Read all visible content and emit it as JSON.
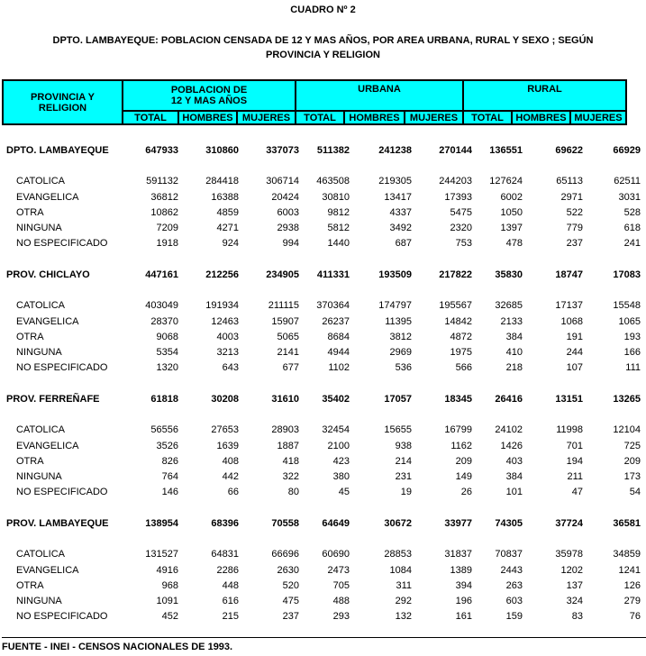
{
  "title": "CUADRO Nº  2",
  "subtitle_line1": "DPTO.  LAMBAYEQUE:  POBLACION CENSADA DE 12 Y MAS AÑOS, POR AREA  URBANA, RURAL Y SEXO ; SEGÚN",
  "subtitle_line2": "PROVINCIA Y RELIGION",
  "header": {
    "col1_line1": "PROVINCIA Y",
    "col1_line2": "RELIGION",
    "group1_line1": "POBLACION DE",
    "group1_line2": "12 Y MAS AÑOS",
    "group2": "URBANA",
    "group3": "RURAL",
    "sub": [
      "TOTAL",
      "HOMBRES",
      "MUJERES",
      "TOTAL",
      "HOMBRES",
      "MUJERES",
      "TOTAL",
      "HOMBRES",
      "MUJERES"
    ]
  },
  "header_color": "#00ffff",
  "sections": [
    {
      "name": "DPTO. LAMBAYEQUE",
      "values": [
        "647933",
        "310860",
        "337073",
        "511382",
        "241238",
        "270144",
        "136551",
        "69622",
        "66929"
      ],
      "rows": [
        {
          "label": "CATOLICA",
          "values": [
            "591132",
            "284418",
            "306714",
            "463508",
            "219305",
            "244203",
            "127624",
            "65113",
            "62511"
          ]
        },
        {
          "label": "EVANGELICA",
          "values": [
            "36812",
            "16388",
            "20424",
            "30810",
            "13417",
            "17393",
            "6002",
            "2971",
            "3031"
          ]
        },
        {
          "label": "OTRA",
          "values": [
            "10862",
            "4859",
            "6003",
            "9812",
            "4337",
            "5475",
            "1050",
            "522",
            "528"
          ]
        },
        {
          "label": "NINGUNA",
          "values": [
            "7209",
            "4271",
            "2938",
            "5812",
            "3492",
            "2320",
            "1397",
            "779",
            "618"
          ]
        },
        {
          "label": "NO ESPECIFICADO",
          "values": [
            "1918",
            "924",
            "994",
            "1440",
            "687",
            "753",
            "478",
            "237",
            "241"
          ]
        }
      ]
    },
    {
      "name": "PROV. CHICLAYO",
      "values": [
        "447161",
        "212256",
        "234905",
        "411331",
        "193509",
        "217822",
        "35830",
        "18747",
        "17083"
      ],
      "rows": [
        {
          "label": "CATOLICA",
          "values": [
            "403049",
            "191934",
            "211115",
            "370364",
            "174797",
            "195567",
            "32685",
            "17137",
            "15548"
          ]
        },
        {
          "label": "EVANGELICA",
          "values": [
            "28370",
            "12463",
            "15907",
            "26237",
            "11395",
            "14842",
            "2133",
            "1068",
            "1065"
          ]
        },
        {
          "label": "OTRA",
          "values": [
            "9068",
            "4003",
            "5065",
            "8684",
            "3812",
            "4872",
            "384",
            "191",
            "193"
          ]
        },
        {
          "label": "NINGUNA",
          "values": [
            "5354",
            "3213",
            "2141",
            "4944",
            "2969",
            "1975",
            "410",
            "244",
            "166"
          ]
        },
        {
          "label": "NO ESPECIFICADO",
          "values": [
            "1320",
            "643",
            "677",
            "1102",
            "536",
            "566",
            "218",
            "107",
            "111"
          ]
        }
      ]
    },
    {
      "name": "PROV. FERREÑAFE",
      "values": [
        "61818",
        "30208",
        "31610",
        "35402",
        "17057",
        "18345",
        "26416",
        "13151",
        "13265"
      ],
      "rows": [
        {
          "label": "CATOLICA",
          "values": [
            "56556",
            "27653",
            "28903",
            "32454",
            "15655",
            "16799",
            "24102",
            "11998",
            "12104"
          ]
        },
        {
          "label": "EVANGELICA",
          "values": [
            "3526",
            "1639",
            "1887",
            "2100",
            "938",
            "1162",
            "1426",
            "701",
            "725"
          ]
        },
        {
          "label": "OTRA",
          "values": [
            "826",
            "408",
            "418",
            "423",
            "214",
            "209",
            "403",
            "194",
            "209"
          ]
        },
        {
          "label": "NINGUNA",
          "values": [
            "764",
            "442",
            "322",
            "380",
            "231",
            "149",
            "384",
            "211",
            "173"
          ]
        },
        {
          "label": "NO ESPECIFICADO",
          "values": [
            "146",
            "66",
            "80",
            "45",
            "19",
            "26",
            "101",
            "47",
            "54"
          ]
        }
      ]
    },
    {
      "name": "PROV. LAMBAYEQUE",
      "values": [
        "138954",
        "68396",
        "70558",
        "64649",
        "30672",
        "33977",
        "74305",
        "37724",
        "36581"
      ],
      "rows": [
        {
          "label": "CATOLICA",
          "values": [
            "131527",
            "64831",
            "66696",
            "60690",
            "28853",
            "31837",
            "70837",
            "35978",
            "34859"
          ]
        },
        {
          "label": "EVANGELICA",
          "values": [
            "4916",
            "2286",
            "2630",
            "2473",
            "1084",
            "1389",
            "2443",
            "1202",
            "1241"
          ]
        },
        {
          "label": "OTRA",
          "values": [
            "968",
            "448",
            "520",
            "705",
            "311",
            "394",
            "263",
            "137",
            "126"
          ]
        },
        {
          "label": "NINGUNA",
          "values": [
            "1091",
            "616",
            "475",
            "488",
            "292",
            "196",
            "603",
            "324",
            "279"
          ]
        },
        {
          "label": "NO ESPECIFICADO",
          "values": [
            "452",
            "215",
            "237",
            "293",
            "132",
            "161",
            "159",
            "83",
            "76"
          ]
        }
      ]
    }
  ],
  "footer": "FUENTE - INEI - CENSOS NACIONALES DE 1993."
}
